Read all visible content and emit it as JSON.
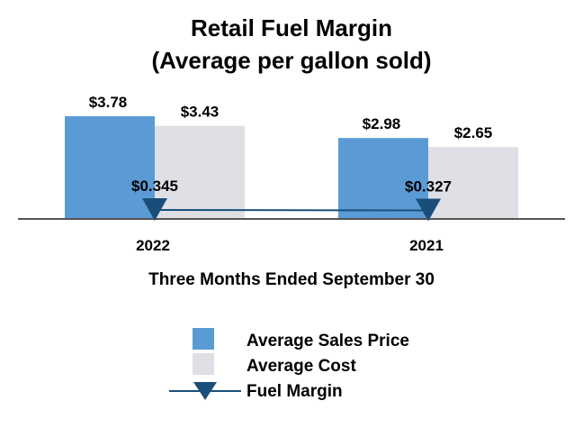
{
  "chart_data": {
    "type": "bar",
    "title": [
      "Retail Fuel Margin",
      "(Average per gallon sold)"
    ],
    "xlabel": "Three Months Ended September 30",
    "ylabel": "",
    "categories": [
      "2022",
      "2021"
    ],
    "ylim": [
      0,
      4.0
    ],
    "grid": false,
    "series": [
      {
        "name": "Average Sales Price",
        "kind": "bar",
        "color": "#5b9bd5",
        "values": [
          3.78,
          2.98
        ],
        "labels": [
          "$3.78",
          "$2.98"
        ]
      },
      {
        "name": "Average Cost",
        "kind": "bar",
        "color": "#dfe0e6",
        "values": [
          3.43,
          2.65
        ],
        "labels": [
          "$3.43",
          "$2.65"
        ]
      },
      {
        "name": "Fuel Margin",
        "kind": "line-marker",
        "color": "#1a4e7a",
        "values": [
          0.345,
          0.327
        ],
        "labels": [
          "$0.345",
          "$0.327"
        ]
      }
    ],
    "legend": {
      "position": "bottom",
      "entries": [
        "Average Sales Price",
        "Average Cost",
        "Fuel Margin"
      ]
    },
    "colors": {
      "axis": "#555555",
      "text": "#000000"
    }
  }
}
